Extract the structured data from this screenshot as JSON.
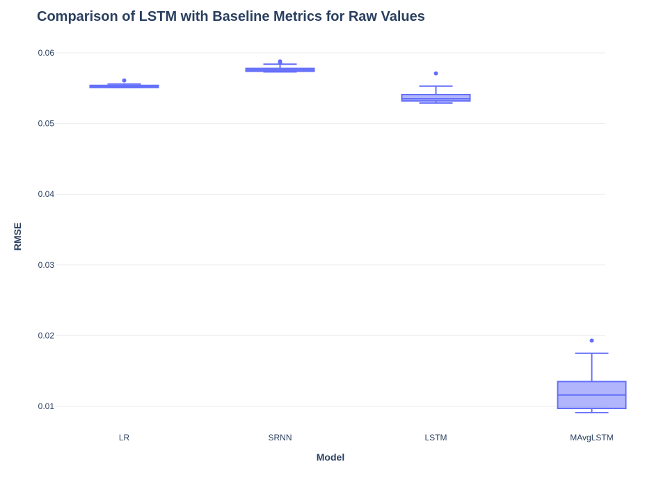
{
  "chart_data": {
    "type": "box",
    "title": "Comparison of LSTM with Baseline Metrics for Raw Values",
    "xlabel": "Model",
    "ylabel": "RMSE",
    "categories": [
      "LR",
      "SRNN",
      "LSTM",
      "MAvgLSTM"
    ],
    "yticks": [
      0.01,
      0.02,
      0.03,
      0.04,
      0.05,
      0.06
    ],
    "ytick_labels": [
      "0.01",
      "0.02",
      "0.03",
      "0.04",
      "0.05",
      "0.06"
    ],
    "ylim": [
      0.0074,
      0.0633
    ],
    "grid": true,
    "boxes": [
      {
        "category": "LR",
        "min": 0.0551,
        "q1": 0.0551,
        "median": 0.0552,
        "q3": 0.0554,
        "max": 0.0556,
        "outliers": [
          0.0561
        ]
      },
      {
        "category": "SRNN",
        "min": 0.0573,
        "q1": 0.0574,
        "median": 0.0576,
        "q3": 0.0578,
        "max": 0.0584,
        "outliers": [
          0.0586,
          0.0588
        ]
      },
      {
        "category": "LSTM",
        "min": 0.0529,
        "q1": 0.0532,
        "median": 0.0535,
        "q3": 0.0541,
        "max": 0.0553,
        "outliers": [
          0.0571
        ]
      },
      {
        "category": "MAvgLSTM",
        "min": 0.0091,
        "q1": 0.0097,
        "median": 0.0116,
        "q3": 0.0135,
        "max": 0.0175,
        "outliers": [
          0.0193
        ]
      }
    ],
    "colors": {
      "line": "#636efa",
      "fill": "rgba(99,110,250,0.5)",
      "grid": "#ebedf0",
      "text": "#2a3f5f"
    }
  }
}
